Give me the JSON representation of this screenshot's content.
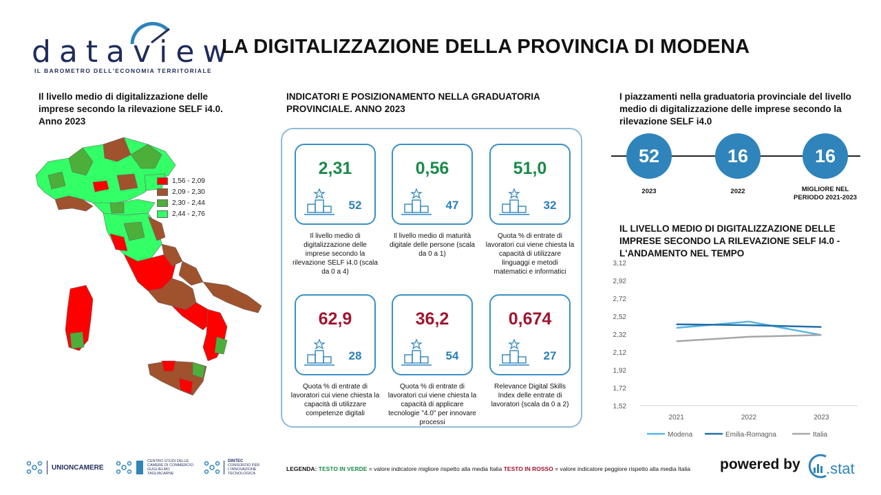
{
  "header": {
    "logo_word": "dataview",
    "logo_subtitle": "IL BAROMETRO DELL'ECONOMIA TERRITORIALE",
    "title": "LA DIGITALIZZAZIONE DELLA PROVINCIA DI MODENA"
  },
  "map": {
    "title": "Il livello medio di digitalizzazione delle imprese secondo la rilevazione SELF i4.0. Anno 2023",
    "legend": [
      {
        "label": "1,56 - 2,09",
        "color": "#ff0000"
      },
      {
        "label": "2,09 - 2,30",
        "color": "#a0522d"
      },
      {
        "label": "2,30 - 2,44",
        "color": "#4caf3a"
      },
      {
        "label": "2,44 - 2,76",
        "color": "#33ff66"
      }
    ]
  },
  "indicators": {
    "title": "INDICATORI E POSIZIONAMENTO NELLA GRADUATORIA PROVINCIALE. ANNO 2023",
    "cards": [
      {
        "value": "2,31",
        "status": "green",
        "rank": "52",
        "description": "Il livello medio di digitalizzazione delle imprese secondo la rilevazione SELF i4.0 (scala da 0 a 4)"
      },
      {
        "value": "0,56",
        "status": "green",
        "rank": "47",
        "description": "Il livello medio di maturità digitale delle persone (scala da 0 a 1)"
      },
      {
        "value": "51,0",
        "status": "green",
        "rank": "32",
        "description": "Quota % di entrate di lavoratori cui viene chiesta la capacità di utilizzare linguaggi e metodi matematici e informatici"
      },
      {
        "value": "62,9",
        "status": "red",
        "rank": "28",
        "description": "Quota % di entrate di lavoratori cui viene chiesta la capacità di utilizzare competenze digitali"
      },
      {
        "value": "36,2",
        "status": "red",
        "rank": "54",
        "description": "Quota % di entrate di lavoratori cui viene chiesta la capacità di applicare tecnologie \"4.0\" per innovare processi"
      },
      {
        "value": "0,674",
        "status": "red",
        "rank": "27",
        "description": "Relevance Digital Skills Index delle entrate di lavoratori (scala da 0 a 2)"
      }
    ]
  },
  "rankings": {
    "title": "I piazzamenti nella graduatoria provinciale del livello medio di digitalizzazione delle imprese secondo la rilevazione SELF i4.0",
    "items": [
      {
        "value": "52",
        "label": "2023"
      },
      {
        "value": "16",
        "label": "2022"
      },
      {
        "value": "16",
        "label": "MIGLIORE NEL PERIODO 2021-2023"
      }
    ]
  },
  "trend": {
    "title": "IL LIVELLO MEDIO DI DIGITALIZZAZIONE DELLE IMPRESE SECONDO LA RILEVAZIONE SELF I4.0 - L'ANDAMENTO NEL TEMPO"
  },
  "chart_data": {
    "type": "line",
    "title": "IL LIVELLO MEDIO DI DIGITALIZZAZIONE DELLE IMPRESE SECONDO LA RILEVAZIONE SELF I4.0 - L'ANDAMENTO NEL TEMPO",
    "categories": [
      "2021",
      "2022",
      "2023"
    ],
    "y_ticks": [
      "3,12",
      "2,92",
      "2,72",
      "2,52",
      "2,32",
      "2,12",
      "1,92",
      "1,72",
      "1,52"
    ],
    "ylim": [
      1.52,
      3.12
    ],
    "grid": false,
    "legend_position": "bottom",
    "series": [
      {
        "name": "Modena",
        "values": [
          2.39,
          2.46,
          2.31
        ],
        "color": "#5ab4e5"
      },
      {
        "name": "Emilia-Romagna",
        "values": [
          2.43,
          2.42,
          2.4
        ],
        "color": "#1f6fa8"
      },
      {
        "name": "Italia",
        "values": [
          2.24,
          2.29,
          2.31
        ],
        "color": "#a6a6a6"
      }
    ]
  },
  "footer": {
    "unioncamere": "UNIONCAMERE",
    "tagliacarne": "CENTRO STUDI DELLE CAMERE DI COMMERCIO GUGLIELMO TAGLIACARNE",
    "dintec_name": "DINTEC",
    "dintec_sub": "CONSORZIO PER L'INNOVAZIONE TECNOLOGICA",
    "legenda_label": "LEGENDA:",
    "legenda_green": "TESTO IN VERDE",
    "legenda_green_text": "= valore indicatore migliore rispetto alla media Italia",
    "legenda_red": "TESTO IN ROSSO",
    "legenda_red_text": "= valore indicatore peggiore rispetto alla media Italia",
    "powered_by": "powered by",
    "cstat": ".stat"
  }
}
